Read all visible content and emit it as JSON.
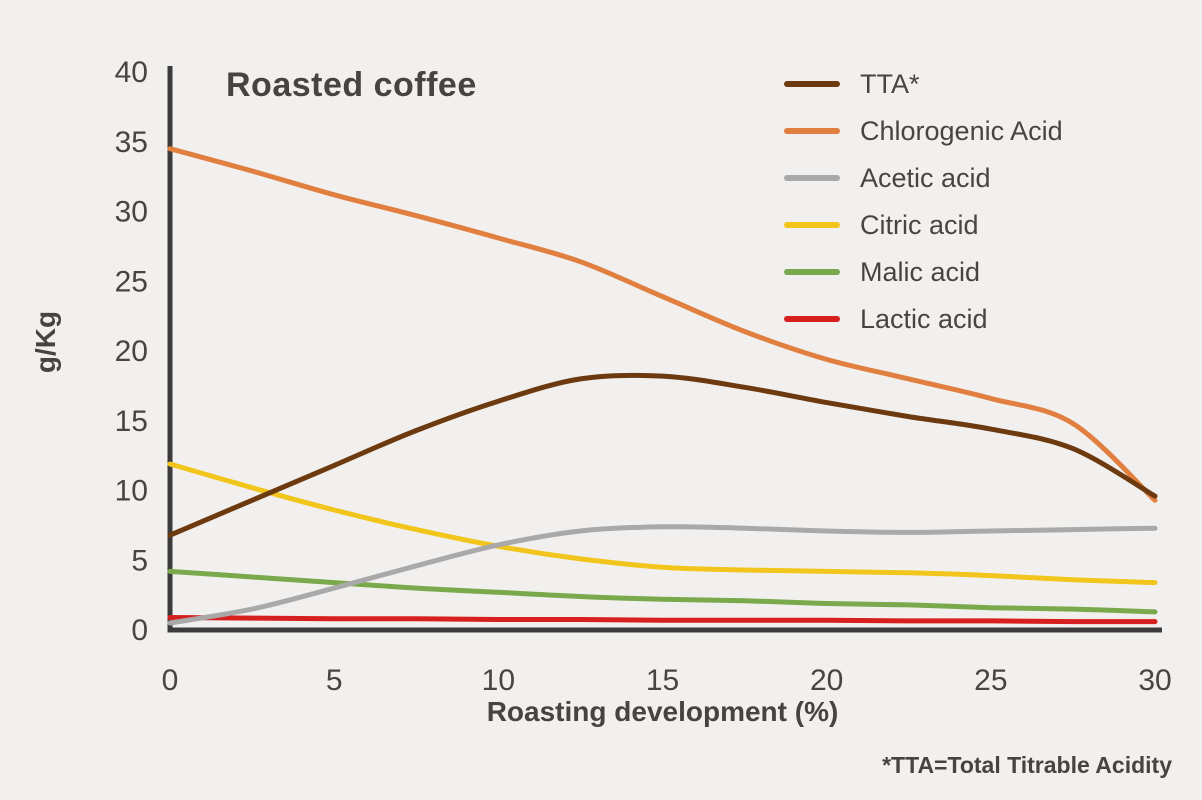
{
  "chart_data": {
    "type": "line",
    "title": "Roasted coffee",
    "xlabel": "Roasting development (%)",
    "ylabel": "g/Kg",
    "footnote": "*TTA=Total Titrable Acidity",
    "xlim": [
      0,
      30
    ],
    "ylim": [
      0,
      40
    ],
    "x_ticks": [
      0,
      5,
      10,
      15,
      20,
      25,
      30
    ],
    "y_ticks": [
      0,
      5,
      10,
      15,
      20,
      25,
      30,
      35,
      40
    ],
    "grid": false,
    "legend_position": "top-right",
    "x": [
      0,
      2.5,
      5,
      7.5,
      10,
      12.5,
      15,
      17.5,
      20,
      22.5,
      25,
      27.5,
      30
    ],
    "series": [
      {
        "id": "tta",
        "name": "TTA*",
        "color": "#6d3a10",
        "values": [
          6.8,
          9.3,
          11.8,
          14.3,
          16.4,
          18.0,
          18.2,
          17.4,
          16.3,
          15.3,
          14.4,
          13.0,
          9.6
        ]
      },
      {
        "id": "chlorogenic-acid",
        "name": "Chlorogenic Acid",
        "color": "#e07f3f",
        "values": [
          34.5,
          32.9,
          31.2,
          29.7,
          28.1,
          26.4,
          23.9,
          21.4,
          19.4,
          18.0,
          16.6,
          14.8,
          9.3
        ]
      },
      {
        "id": "acetic-acid",
        "name": "Acetic acid",
        "color": "#a9a9a9",
        "values": [
          0.5,
          1.5,
          3.0,
          4.6,
          6.1,
          7.1,
          7.4,
          7.3,
          7.1,
          7.0,
          7.1,
          7.2,
          7.3
        ]
      },
      {
        "id": "citric-acid",
        "name": "Citric acid",
        "color": "#f1c51c",
        "values": [
          11.9,
          10.2,
          8.6,
          7.2,
          6.0,
          5.1,
          4.5,
          4.3,
          4.2,
          4.1,
          3.9,
          3.6,
          3.4
        ]
      },
      {
        "id": "malic-acid",
        "name": "Malic acid",
        "color": "#79a94a",
        "values": [
          4.2,
          3.8,
          3.4,
          3.0,
          2.7,
          2.4,
          2.2,
          2.1,
          1.9,
          1.8,
          1.6,
          1.5,
          1.3
        ]
      },
      {
        "id": "lactic-acid",
        "name": "Lactic acid",
        "color": "#d61f1f",
        "values": [
          0.9,
          0.85,
          0.8,
          0.8,
          0.75,
          0.75,
          0.7,
          0.7,
          0.7,
          0.65,
          0.65,
          0.6,
          0.6
        ]
      }
    ]
  },
  "colors": {
    "background": "#f2f0ee",
    "axis": "#3b3b3b",
    "text": "#4a4440"
  }
}
